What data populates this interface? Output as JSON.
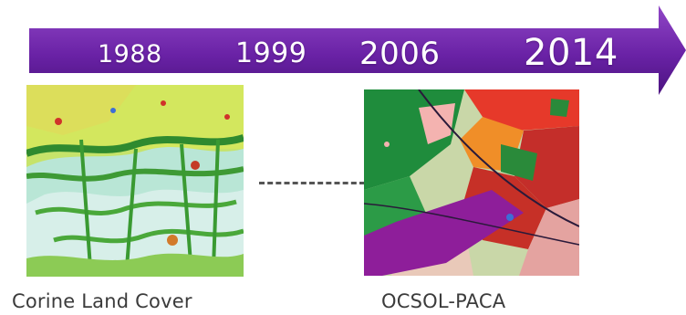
{
  "timeline": {
    "years": [
      "1988",
      "1999",
      "2006",
      "2014"
    ],
    "colors": {
      "arrow_top": "#8a3fc0",
      "arrow_bottom": "#4b1380",
      "year_text": "#ffffff"
    }
  },
  "maps": [
    {
      "caption": "Corine Land Cover"
    },
    {
      "caption": "OCSOL-PACA"
    }
  ]
}
